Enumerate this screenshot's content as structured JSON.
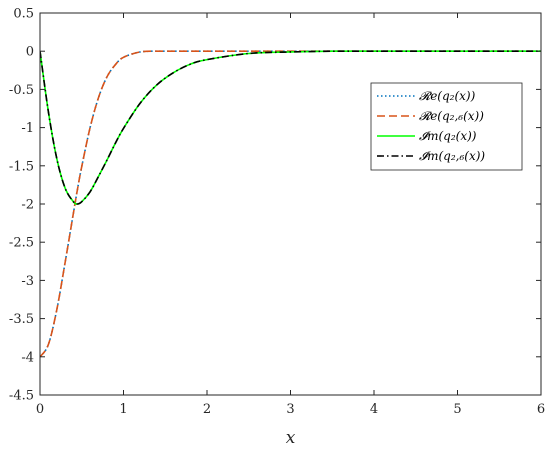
{
  "chart_data": {
    "type": "line",
    "title": "",
    "xlabel": "x",
    "ylabel": "",
    "xlim": [
      0,
      6
    ],
    "ylim": [
      -4.5,
      0.5
    ],
    "xticks": [
      0,
      1,
      2,
      3,
      4,
      5,
      6
    ],
    "xtick_labels": [
      "0",
      "1",
      "2",
      "3",
      "4",
      "5",
      "6"
    ],
    "yticks": [
      0.5,
      0,
      -0.5,
      -1,
      -1.5,
      -2,
      -2.5,
      -3,
      -3.5,
      -4,
      -4.5
    ],
    "ytick_labels": [
      "0.5",
      "0",
      "-0.5",
      "-1",
      "-1.5",
      "-2",
      "-2.5",
      "-3",
      "-3.5",
      "-4",
      "-4.5"
    ],
    "grid": false,
    "legend_position": "right",
    "x": [
      0,
      0.1,
      0.2,
      0.3,
      0.4,
      0.45,
      0.5,
      0.6,
      0.7,
      0.8,
      0.9,
      1.0,
      1.2,
      1.4,
      1.6,
      1.8,
      2.0,
      2.5,
      3.0,
      3.5,
      4.0,
      5.0,
      6.0
    ],
    "series": [
      {
        "name": "Re(q2(x))",
        "legend_label": "𝓡e(q₂(x))",
        "color": "#0072BD",
        "dash": "dotted",
        "values": [
          -4.0,
          -3.84,
          -3.39,
          -2.77,
          -2.12,
          -1.8,
          -1.51,
          -1.0,
          -0.61,
          -0.34,
          -0.18,
          -0.08,
          -0.01,
          0,
          0,
          0,
          0,
          0,
          0,
          0,
          0,
          0,
          0
        ]
      },
      {
        "name": "Re(q2,6(x))",
        "legend_label": "𝓡e(q₂,₆(x))",
        "color": "#D95319",
        "dash": "dashed",
        "values": [
          -4.0,
          -3.84,
          -3.39,
          -2.77,
          -2.12,
          -1.8,
          -1.51,
          -1.0,
          -0.61,
          -0.34,
          -0.18,
          -0.08,
          -0.01,
          0,
          0,
          0,
          0,
          0,
          0,
          0,
          0,
          0,
          0
        ]
      },
      {
        "name": "Im(q2(x))",
        "legend_label": "𝓘m(q₂(x))",
        "color": "#00FF00",
        "dash": "solid",
        "values": [
          0,
          -0.79,
          -1.4,
          -1.79,
          -1.97,
          -2.0,
          -1.97,
          -1.84,
          -1.64,
          -1.43,
          -1.21,
          -1.01,
          -0.68,
          -0.44,
          -0.28,
          -0.17,
          -0.11,
          -0.03,
          -0.01,
          0,
          0,
          0,
          0
        ]
      },
      {
        "name": "Im(q2,6(x))",
        "legend_label": "𝓘m(q₂,₆(x))",
        "color": "#000000",
        "dash": "dashdot",
        "values": [
          0,
          -0.79,
          -1.4,
          -1.79,
          -1.97,
          -2.0,
          -1.97,
          -1.84,
          -1.64,
          -1.43,
          -1.21,
          -1.01,
          -0.68,
          -0.44,
          -0.28,
          -0.17,
          -0.11,
          -0.03,
          -0.01,
          0,
          0,
          0,
          0
        ]
      }
    ]
  }
}
